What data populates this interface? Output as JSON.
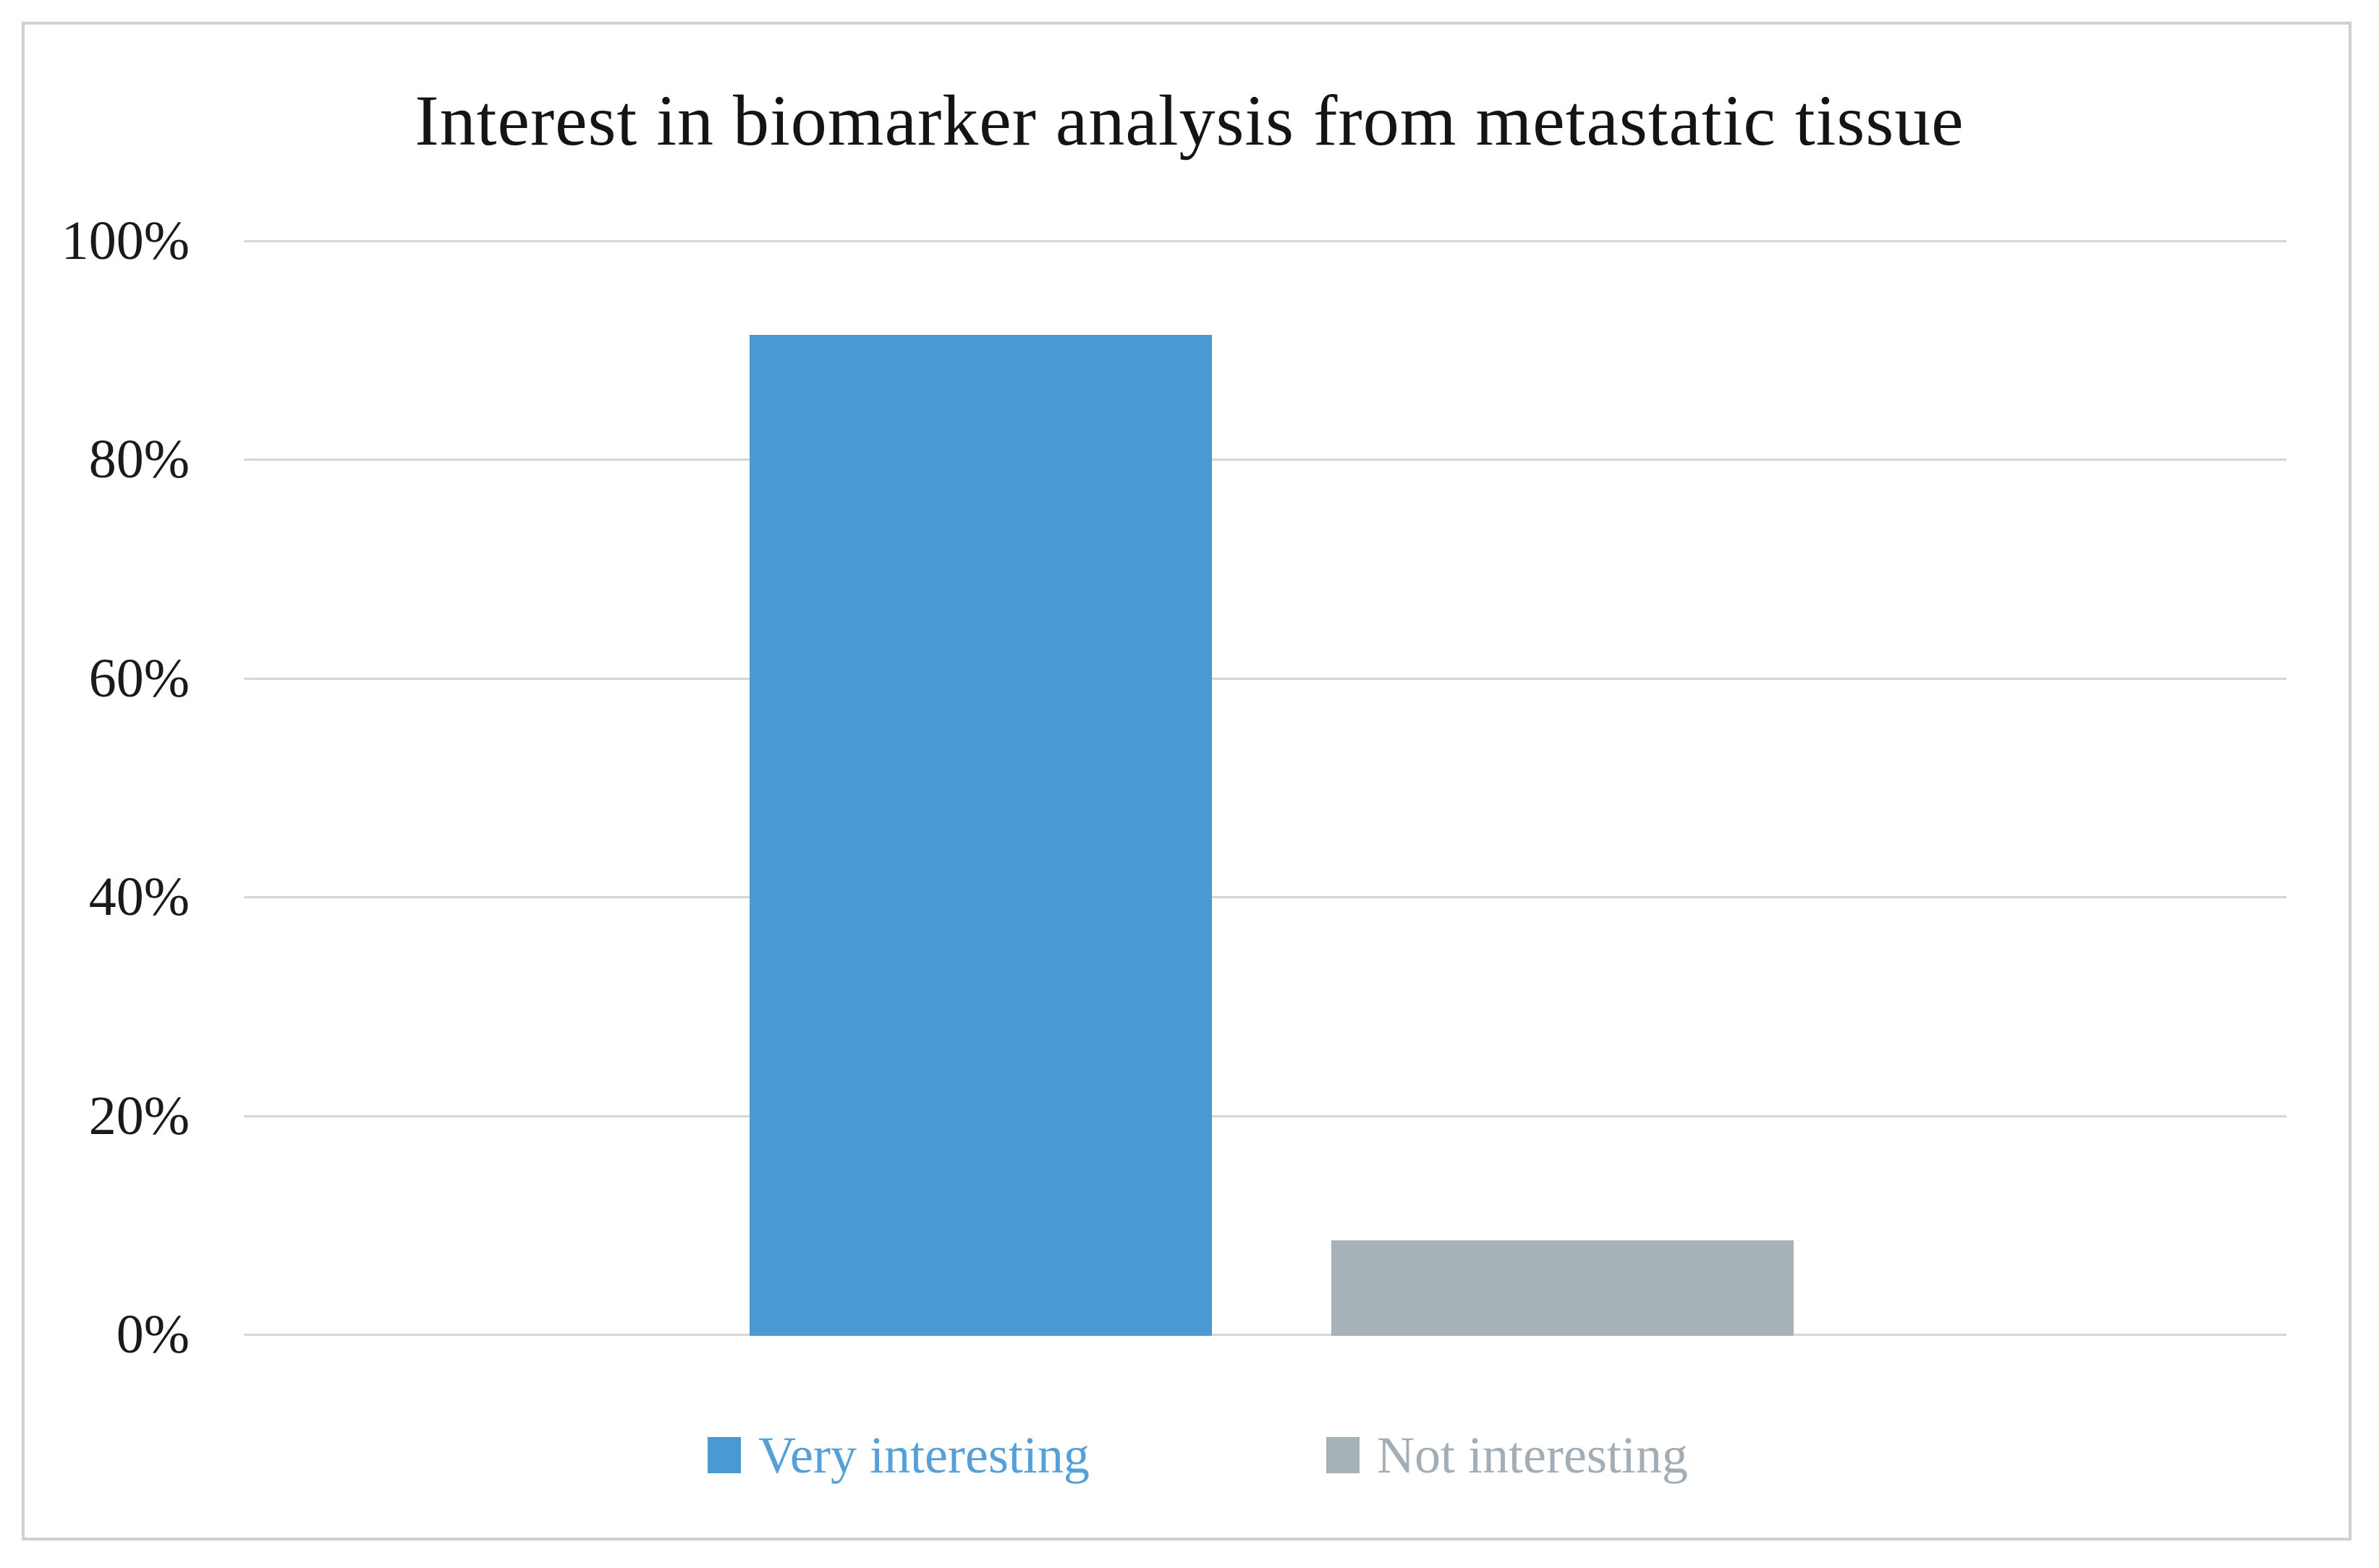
{
  "figure": {
    "background": "#FFFFFF",
    "border_color": "#D0D0D0"
  },
  "chart_data": {
    "type": "bar",
    "title": "Interest in biomarker analysis from metastatic tissue",
    "title_color": "#141414",
    "categories": [
      "Very interesting",
      "Not interesting"
    ],
    "series": [
      {
        "name": "Very interesting",
        "value": 91.4,
        "color": "#4A99D3",
        "label_color": "#55A0D8"
      },
      {
        "name": "Not interesting",
        "value": 8.6,
        "color": "#A7B1B8",
        "label_color": "#A3ADB5"
      }
    ],
    "xlabel": "",
    "ylabel": "",
    "ylim": [
      0,
      100
    ],
    "yticks": [
      {
        "label": "100%",
        "value": 100
      },
      {
        "label": "80%",
        "value": 80
      },
      {
        "label": "60%",
        "value": 60
      },
      {
        "label": "40%",
        "value": 40
      },
      {
        "label": "20%",
        "value": 20
      },
      {
        "label": "0%",
        "value": 0
      }
    ],
    "grid": "horizontal",
    "gridline_color": "#D6D6D6",
    "tick_color": "#1A1A1A",
    "legend_position": "bottom"
  }
}
